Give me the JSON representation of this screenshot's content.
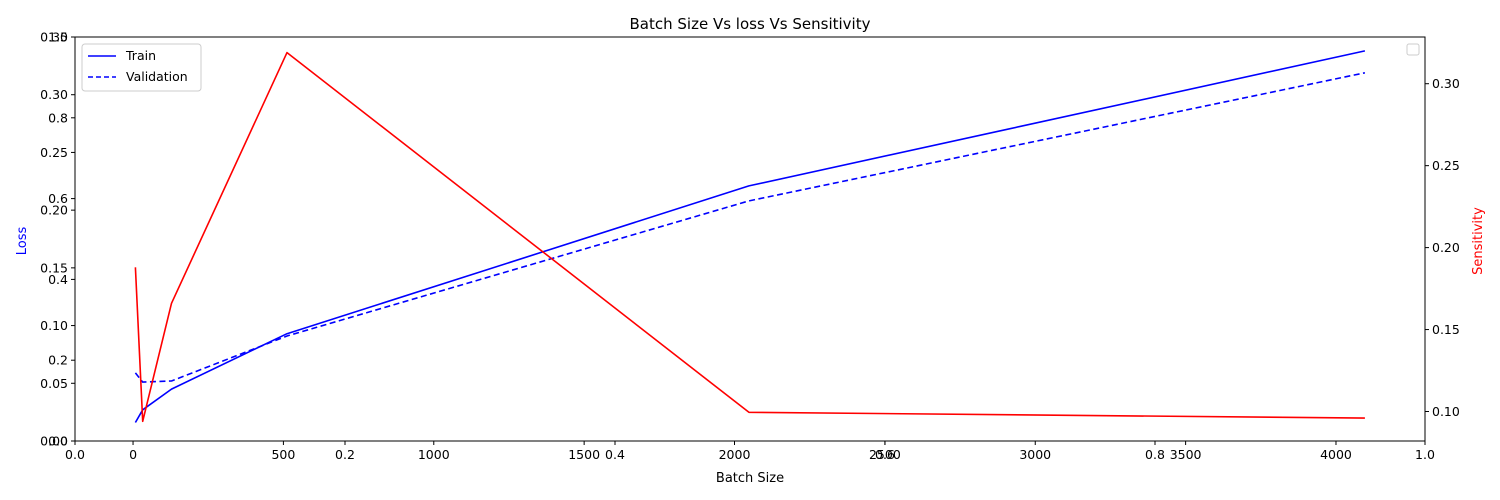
{
  "chart_data": {
    "type": "line",
    "title": "Batch Size Vs loss Vs Sensitivity",
    "xlabel": "Batch Size",
    "x": [
      8,
      32,
      128,
      512,
      2048,
      4096
    ],
    "xlim": [
      -193,
      4296
    ],
    "xticks": [
      0,
      500,
      1000,
      1500,
      2000,
      2500,
      3000,
      3500,
      4000
    ],
    "ylabel_left": "Loss",
    "ylim_left": [
      0,
      0.35
    ],
    "yticks_left": [
      "0.00",
      "0.05",
      "0.10",
      "0.15",
      "0.20",
      "0.25",
      "0.30",
      "0.35"
    ],
    "ylabel_right": "Sensitivity",
    "ylim_right": [
      0.082,
      0.3285
    ],
    "yticks_right": [
      "0.10",
      "0.15",
      "0.20",
      "0.25",
      "0.30"
    ],
    "overlay_axes_ticks": [
      "0.0",
      "0.2",
      "0.4",
      "0.6",
      "0.8",
      "1.0"
    ],
    "legend_position": "upper left",
    "series": [
      {
        "name": "Train",
        "axis": "left",
        "style": "solid",
        "color": "#0000ff",
        "values": [
          0.016,
          0.027,
          0.045,
          0.093,
          0.221,
          0.338
        ]
      },
      {
        "name": "Validation",
        "axis": "left",
        "style": "dashed",
        "color": "#0000ff",
        "values": [
          0.059,
          0.051,
          0.052,
          0.091,
          0.208,
          0.319
        ]
      },
      {
        "name": "",
        "axis": "right",
        "style": "solid",
        "color": "#ff0000",
        "values": [
          0.188,
          0.094,
          0.166,
          0.319,
          0.0995,
          0.096
        ]
      }
    ],
    "colors": {
      "loss": "#0000ff",
      "sensitivity": "#ff0000"
    }
  }
}
